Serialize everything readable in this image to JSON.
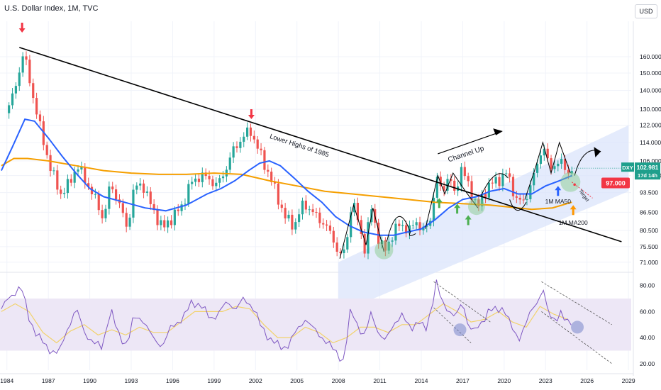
{
  "chart_title": "U.S. Dollar Index, 1M, TVC",
  "currency": "USD",
  "colors": {
    "up": "#26a69a",
    "down": "#ef5350",
    "ma50": "#2962ff",
    "ma200": "#f59f00",
    "channel": "#dbe4fb",
    "rsi": "#7e57c2",
    "rsi_ma": "#f2d26b",
    "rsi_band": "#ede7f6",
    "current_tag": "#1f9f8c",
    "target_tag": "#f23645",
    "arrow_red": "#f23645",
    "arrow_green": "#4caf50",
    "arrow_orange": "#ff9800",
    "arrow_blue": "#2962ff"
  },
  "chart_data": [
    {
      "type": "candlestick",
      "title": "U.S. Dollar Index, 1M, TVC",
      "y_scale": "log",
      "ylim": [
        69,
        180
      ],
      "x_range": [
        1983.5,
        2029.2
      ],
      "x_ticks": [
        "1984",
        "1987",
        "1990",
        "1993",
        "1996",
        "1999",
        "2002",
        "2005",
        "2008",
        "2011",
        "2014",
        "2017",
        "2020",
        "2023",
        "2026",
        "2029"
      ],
      "y_ticks": [
        "160.000",
        "150.000",
        "140.000",
        "130.000",
        "122.000",
        "114.000",
        "106.000",
        "100.000",
        "93.500",
        "86.500",
        "80.500",
        "75.500",
        "71.000"
      ],
      "price_path": [
        [
          1983.9,
          128
        ],
        [
          1984.5,
          138
        ],
        [
          1985.2,
          163
        ],
        [
          1985.8,
          140
        ],
        [
          1986.5,
          118
        ],
        [
          1987.2,
          102
        ],
        [
          1987.9,
          93
        ],
        [
          1988.4,
          96
        ],
        [
          1989.1,
          104
        ],
        [
          1989.9,
          96
        ],
        [
          1990.5,
          90
        ],
        [
          1991.0,
          84
        ],
        [
          1991.5,
          97
        ],
        [
          1992.1,
          90
        ],
        [
          1992.7,
          81
        ],
        [
          1993.2,
          95
        ],
        [
          1993.8,
          97
        ],
        [
          1994.5,
          88
        ],
        [
          1995.3,
          81
        ],
        [
          1995.8,
          84
        ],
        [
          1996.6,
          88
        ],
        [
          1997.3,
          97
        ],
        [
          1998.0,
          100
        ],
        [
          1998.6,
          99
        ],
        [
          1999.2,
          96
        ],
        [
          1999.8,
          102
        ],
        [
          2000.5,
          112
        ],
        [
          2001.2,
          117
        ],
        [
          2001.6,
          120
        ],
        [
          2002.4,
          108
        ],
        [
          2003.0,
          100
        ],
        [
          2003.6,
          92
        ],
        [
          2004.1,
          85
        ],
        [
          2004.8,
          82
        ],
        [
          2005.5,
          90
        ],
        [
          2006.2,
          86
        ],
        [
          2006.9,
          83
        ],
        [
          2007.5,
          79
        ],
        [
          2008.2,
          72
        ],
        [
          2008.6,
          77
        ],
        [
          2008.9,
          88
        ],
        [
          2009.2,
          88
        ],
        [
          2009.9,
          75
        ],
        [
          2010.4,
          88
        ],
        [
          2010.9,
          78
        ],
        [
          2011.3,
          74
        ],
        [
          2011.9,
          79
        ],
        [
          2012.5,
          83
        ],
        [
          2013.1,
          80
        ],
        [
          2013.6,
          84
        ],
        [
          2014.1,
          80
        ],
        [
          2014.6,
          83
        ],
        [
          2015.1,
          99
        ],
        [
          2015.5,
          94
        ],
        [
          2016.0,
          100
        ],
        [
          2016.4,
          93
        ],
        [
          2016.9,
          103
        ],
        [
          2017.5,
          95
        ],
        [
          2018.1,
          88
        ],
        [
          2018.8,
          96
        ],
        [
          2019.5,
          98
        ],
        [
          2020.2,
          101
        ],
        [
          2020.9,
          91
        ],
        [
          2021.4,
          90
        ],
        [
          2021.9,
          96
        ],
        [
          2022.5,
          106
        ],
        [
          2022.8,
          114
        ],
        [
          2023.3,
          102
        ],
        [
          2023.8,
          106
        ],
        [
          2024.3,
          104
        ],
        [
          2024.6,
          101
        ],
        [
          2024.9,
          103
        ]
      ],
      "series": [
        {
          "name": "1M MA50",
          "values": [
            [
              1983.6,
              102
            ],
            [
              1984.4,
              112
            ],
            [
              1985.3,
              125
            ],
            [
              1986.0,
              124
            ],
            [
              1987.0,
              116
            ],
            [
              1988.0,
              108
            ],
            [
              1989.0,
              101
            ],
            [
              1990.0,
              95
            ],
            [
              1991.0,
              92
            ],
            [
              1992.5,
              90
            ],
            [
              1994.0,
              88
            ],
            [
              1995.5,
              87
            ],
            [
              1997.0,
              89
            ],
            [
              1998.5,
              93
            ],
            [
              1999.5,
              95
            ],
            [
              2000.5,
              98
            ],
            [
              2001.5,
              102
            ],
            [
              2002.3,
              105
            ],
            [
              2003.0,
              106
            ],
            [
              2003.8,
              104
            ],
            [
              2004.8,
              99
            ],
            [
              2005.8,
              94
            ],
            [
              2006.8,
              90
            ],
            [
              2007.8,
              85
            ],
            [
              2008.8,
              82
            ],
            [
              2009.8,
              80
            ],
            [
              2011.0,
              79
            ],
            [
              2012.0,
              79
            ],
            [
              2013.0,
              80
            ],
            [
              2014.0,
              81
            ],
            [
              2015.0,
              84
            ],
            [
              2016.0,
              88
            ],
            [
              2017.0,
              91
            ],
            [
              2018.0,
              92
            ],
            [
              2019.0,
              94
            ],
            [
              2020.0,
              95
            ],
            [
              2021.0,
              93
            ],
            [
              2022.0,
              93
            ],
            [
              2023.0,
              96
            ],
            [
              2024.0,
              98
            ],
            [
              2024.9,
              100
            ]
          ]
        },
        {
          "name": "1M MA200",
          "values": [
            [
              1983.6,
              104
            ],
            [
              1984.5,
              107
            ],
            [
              1985.5,
              107
            ],
            [
              1987.0,
              106
            ],
            [
              1989.0,
              104
            ],
            [
              1991.0,
              102
            ],
            [
              1993.0,
              101
            ],
            [
              1995.0,
              100.5
            ],
            [
              1997.0,
              100.5
            ],
            [
              1999.0,
              101
            ],
            [
              2001.0,
              100.5
            ],
            [
              2003.0,
              98
            ],
            [
              2005.0,
              96
            ],
            [
              2007.0,
              94
            ],
            [
              2009.0,
              93
            ],
            [
              2011.0,
              92
            ],
            [
              2013.0,
              91
            ],
            [
              2015.0,
              90
            ],
            [
              2017.0,
              89.5
            ],
            [
              2019.0,
              89
            ],
            [
              2021.0,
              88
            ],
            [
              2022.0,
              87.5
            ],
            [
              2023.5,
              88
            ],
            [
              2024.9,
              90
            ]
          ]
        }
      ],
      "current_price": {
        "label": "DXY",
        "value": "102.981",
        "countdown": "17d 14h"
      },
      "target": {
        "label": "Target",
        "value": "97.000"
      },
      "annotations": {
        "trendline": "Lower Highs of 1985",
        "channel": "Channel Up",
        "ma50": "1M MA50",
        "ma200": "1M MA200"
      }
    },
    {
      "type": "line",
      "ylim": [
        15,
        88
      ],
      "y_ticks": [
        "80.00",
        "60.00",
        "40.00",
        "20.00"
      ],
      "band": [
        30,
        70
      ],
      "rsi_path": [
        [
          1983.6,
          62
        ],
        [
          1984.3,
          72
        ],
        [
          1985.0,
          80
        ],
        [
          1985.6,
          55
        ],
        [
          1986.2,
          42
        ],
        [
          1986.8,
          33
        ],
        [
          1987.3,
          30
        ],
        [
          1987.8,
          28
        ],
        [
          1988.3,
          45
        ],
        [
          1989.0,
          62
        ],
        [
          1989.6,
          45
        ],
        [
          1990.3,
          35
        ],
        [
          1990.9,
          33
        ],
        [
          1991.5,
          62
        ],
        [
          1992.0,
          44
        ],
        [
          1992.7,
          34
        ],
        [
          1993.2,
          56
        ],
        [
          1993.8,
          55
        ],
        [
          1994.5,
          40
        ],
        [
          1995.3,
          34
        ],
        [
          1996.0,
          50
        ],
        [
          1996.8,
          55
        ],
        [
          1997.4,
          68
        ],
        [
          1998.0,
          65
        ],
        [
          1998.7,
          55
        ],
        [
          1999.3,
          58
        ],
        [
          2000.0,
          68
        ],
        [
          2000.6,
          62
        ],
        [
          2001.2,
          70
        ],
        [
          2001.8,
          64
        ],
        [
          2002.4,
          48
        ],
        [
          2003.0,
          40
        ],
        [
          2003.8,
          32
        ],
        [
          2004.3,
          34
        ],
        [
          2005.0,
          45
        ],
        [
          2005.6,
          55
        ],
        [
          2006.2,
          46
        ],
        [
          2006.9,
          40
        ],
        [
          2007.5,
          32
        ],
        [
          2008.0,
          27
        ],
        [
          2008.4,
          22
        ],
        [
          2008.9,
          62
        ],
        [
          2009.4,
          50
        ],
        [
          2009.9,
          40
        ],
        [
          2010.4,
          60
        ],
        [
          2010.9,
          44
        ],
        [
          2011.4,
          36
        ],
        [
          2012.0,
          52
        ],
        [
          2012.6,
          56
        ],
        [
          2013.2,
          48
        ],
        [
          2013.8,
          52
        ],
        [
          2014.3,
          45
        ],
        [
          2014.7,
          62
        ],
        [
          2015.1,
          82
        ],
        [
          2015.5,
          66
        ],
        [
          2016.0,
          62
        ],
        [
          2016.5,
          55
        ],
        [
          2017.0,
          68
        ],
        [
          2017.4,
          50
        ],
        [
          2017.9,
          44
        ],
        [
          2018.4,
          52
        ],
        [
          2018.9,
          62
        ],
        [
          2019.4,
          60
        ],
        [
          2020.0,
          64
        ],
        [
          2020.5,
          48
        ],
        [
          2021.0,
          38
        ],
        [
          2021.5,
          50
        ],
        [
          2022.0,
          60
        ],
        [
          2022.5,
          70
        ],
        [
          2022.8,
          80
        ],
        [
          2023.2,
          56
        ],
        [
          2023.7,
          54
        ],
        [
          2024.1,
          60
        ],
        [
          2024.5,
          50
        ],
        [
          2024.9,
          52
        ]
      ],
      "rsi_ma_path": [
        [
          1983.6,
          60
        ],
        [
          1984.6,
          66
        ],
        [
          1985.6,
          60
        ],
        [
          1986.6,
          44
        ],
        [
          1987.6,
          36
        ],
        [
          1988.6,
          45
        ],
        [
          1989.6,
          50
        ],
        [
          1990.6,
          42
        ],
        [
          1991.6,
          46
        ],
        [
          1992.6,
          42
        ],
        [
          1993.6,
          48
        ],
        [
          1994.6,
          44
        ],
        [
          1995.6,
          44
        ],
        [
          1996.6,
          52
        ],
        [
          1997.6,
          60
        ],
        [
          1998.6,
          60
        ],
        [
          1999.6,
          60
        ],
        [
          2000.6,
          64
        ],
        [
          2001.6,
          62
        ],
        [
          2002.6,
          50
        ],
        [
          2003.6,
          40
        ],
        [
          2004.6,
          40
        ],
        [
          2005.6,
          48
        ],
        [
          2006.6,
          44
        ],
        [
          2007.6,
          36
        ],
        [
          2008.6,
          40
        ],
        [
          2009.6,
          48
        ],
        [
          2010.6,
          48
        ],
        [
          2011.6,
          44
        ],
        [
          2012.6,
          50
        ],
        [
          2013.6,
          50
        ],
        [
          2014.6,
          58
        ],
        [
          2015.6,
          66
        ],
        [
          2016.6,
          60
        ],
        [
          2017.6,
          52
        ],
        [
          2018.6,
          54
        ],
        [
          2019.6,
          60
        ],
        [
          2020.6,
          52
        ],
        [
          2021.6,
          48
        ],
        [
          2022.6,
          64
        ],
        [
          2023.6,
          58
        ],
        [
          2024.6,
          54
        ]
      ]
    }
  ]
}
